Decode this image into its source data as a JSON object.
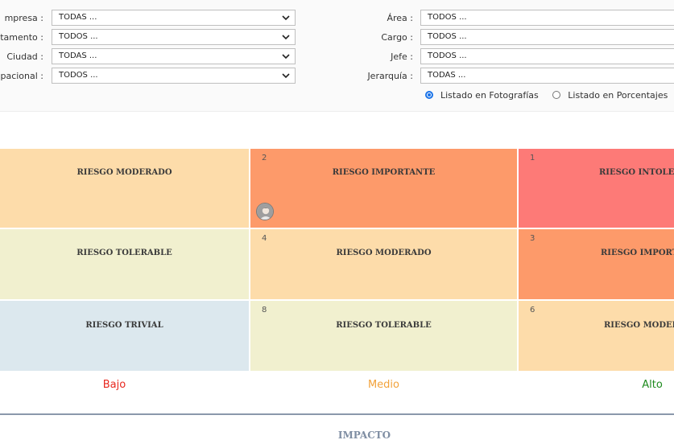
{
  "filters": {
    "left": [
      {
        "label": "mpresa :",
        "value": "TODAS ..."
      },
      {
        "label": "tamento :",
        "value": "TODOS ..."
      },
      {
        "label": "Ciudad :",
        "value": "TODAS ..."
      },
      {
        "label": "pacional :",
        "value": "TODOS ..."
      }
    ],
    "right": [
      {
        "label": "Área :",
        "value": "TODOS ..."
      },
      {
        "label": "Cargo :",
        "value": "TODOS ..."
      },
      {
        "label": "Jefe :",
        "value": "TODOS ..."
      },
      {
        "label": "Jerarquía :",
        "value": "TODAS ..."
      }
    ]
  },
  "list_options": {
    "photos": "Listado en Fotografías",
    "percentages": "Listado en Porcentajes",
    "selected": "photos"
  },
  "matrix": {
    "rows": [
      [
        {
          "num": "",
          "label": "RIESGO MODERADO",
          "color": "#fddcaa"
        },
        {
          "num": "2",
          "label": "RIESGO IMPORTANTE",
          "color": "#fd9a6a",
          "has_avatar": true
        },
        {
          "num": "1",
          "label": "RIESGO INTOLERABLE",
          "color": "#fd7a77"
        }
      ],
      [
        {
          "num": "",
          "label": "RIESGO TOLERABLE",
          "color": "#f1f0cf"
        },
        {
          "num": "4",
          "label": "RIESGO MODERADO",
          "color": "#fddcaa"
        },
        {
          "num": "3",
          "label": "RIESGO IMPORTANTE",
          "color": "#fd9a6a"
        }
      ],
      [
        {
          "num": "",
          "label": "RIESGO TRIVIAL",
          "color": "#dce8ee"
        },
        {
          "num": "8",
          "label": "RIESGO TOLERABLE",
          "color": "#f1f0cf"
        },
        {
          "num": "6",
          "label": "RIESGO MODERADO",
          "color": "#fddcaa"
        }
      ]
    ]
  },
  "impact": {
    "levels": [
      {
        "label": "Bajo",
        "color": "#e8281f"
      },
      {
        "label": "Medio",
        "color": "#f2a23a"
      },
      {
        "label": "Alto",
        "color": "#1d8a1d"
      }
    ],
    "title": "IMPACTO"
  }
}
